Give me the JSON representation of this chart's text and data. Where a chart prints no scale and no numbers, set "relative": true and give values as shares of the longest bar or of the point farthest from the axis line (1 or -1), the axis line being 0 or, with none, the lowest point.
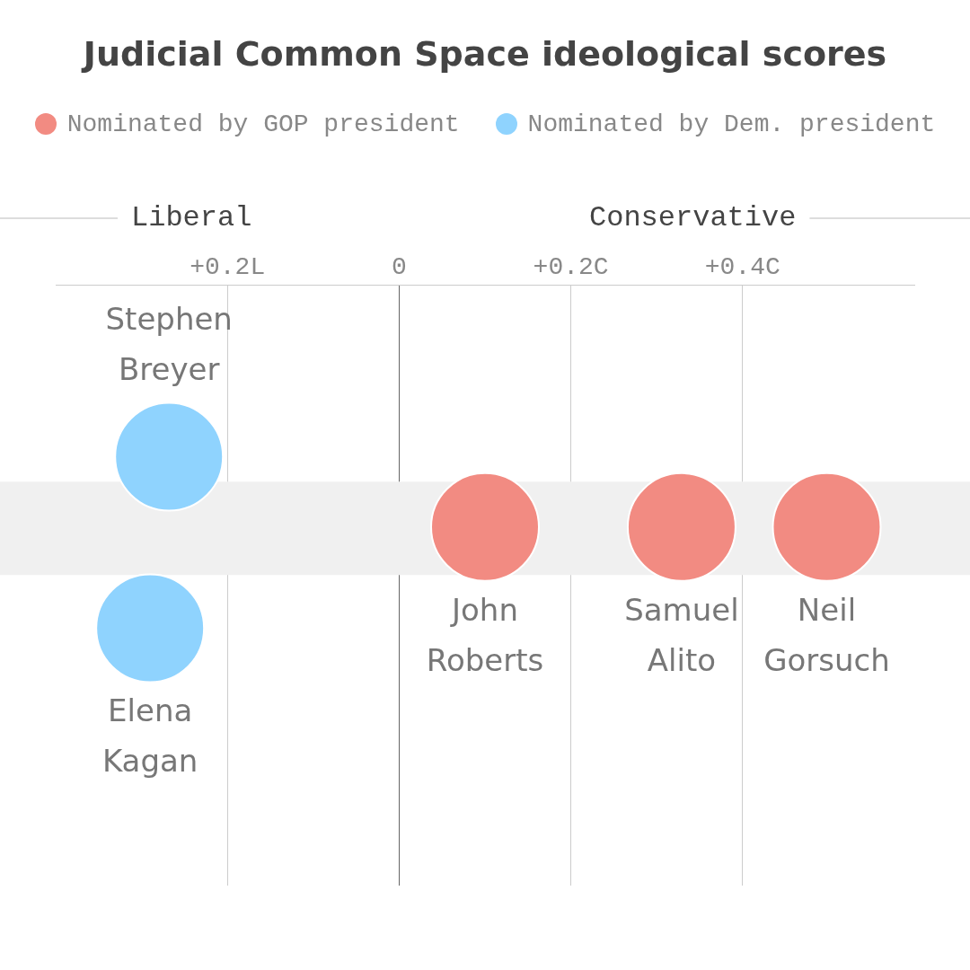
{
  "chart_data": {
    "type": "scatter",
    "title": "Judicial Common Space ideological scores",
    "relative": true,
    "series": [
      {
        "name": "Nominated by GOP president",
        "color": "#f28b82",
        "x": [
          0.1,
          0.329,
          0.498
        ],
        "values": [
          0.59,
          0.59,
          0.59
        ]
      },
      {
        "name": "Nominated by Dem. president",
        "color": "#8fd3fe",
        "x": [
          -0.268,
          -0.29
        ],
        "values": [
          1,
          0
        ]
      }
    ],
    "xlim": [
      -0.4,
      0.6
    ],
    "xticks": [
      {
        "value": -0.2,
        "label": "+0.2L"
      },
      {
        "value": 0,
        "label": "0"
      },
      {
        "value": 0.2,
        "label": "+0.2C"
      },
      {
        "value": 0.4,
        "label": "+0.4C"
      }
    ],
    "bands": [
      {
        "axis": "y",
        "from": 0.31,
        "to": 0.855,
        "color": "#f0f0f0"
      }
    ],
    "annotations": [
      "Liberal",
      "Conservative",
      {
        "text": "Stephen Breyer",
        "x": -0.268,
        "y": 1
      },
      {
        "text": "Elena Kagan",
        "x": -0.29,
        "y": 0
      },
      {
        "text": "John Roberts",
        "x": 0.1,
        "y": 0.59
      },
      {
        "text": "Samuel Alito",
        "x": 0.329,
        "y": 0.59
      },
      {
        "text": "Neil Gorsuch",
        "x": 0.498,
        "y": 0.59
      }
    ],
    "grid": "x",
    "legend": "top",
    "marker": "circle"
  }
}
